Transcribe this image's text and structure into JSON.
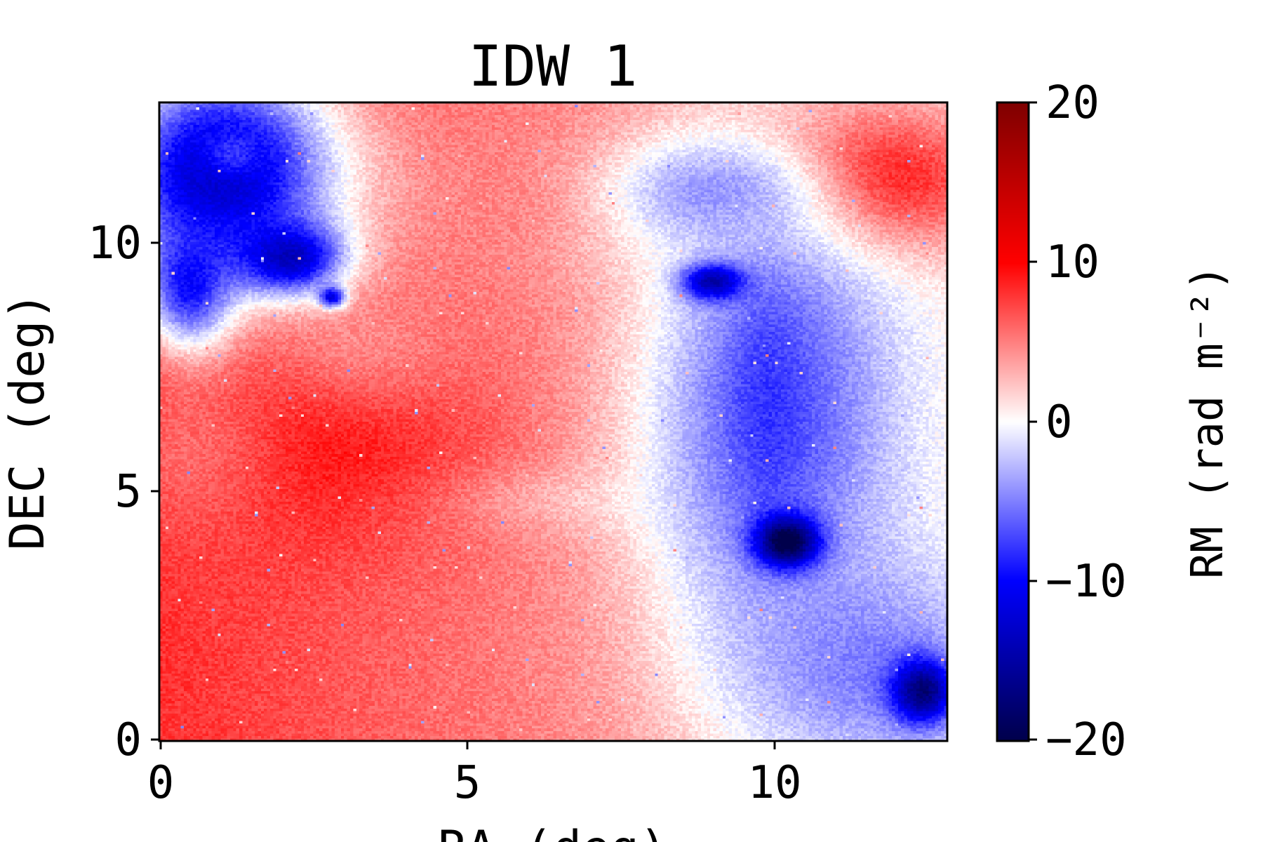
{
  "chart_data": {
    "type": "heatmap",
    "title": "IDW 1",
    "xlabel": "RA (deg)",
    "ylabel": "DEC (deg)",
    "xlim": [
      0,
      12.8
    ],
    "ylim": [
      0,
      12.8
    ],
    "x_ticks": [
      0,
      5,
      10
    ],
    "y_ticks": [
      0,
      5,
      10
    ],
    "grid": false,
    "colormap": "seismic",
    "colorbar": {
      "label": "RM (rad m⁻²)",
      "range": [
        -20,
        20
      ],
      "ticks": [
        -20,
        -10,
        0,
        10,
        20
      ],
      "tick_labels": [
        "−20",
        "−10",
        "0",
        "10",
        "20"
      ]
    },
    "background_rm": 5,
    "features": [
      {
        "ra": 2.3,
        "dec": 6.3,
        "sigma_ra": 1.9,
        "sigma_dec": 1.5,
        "rm": 10
      },
      {
        "ra": 0.5,
        "dec": 5.8,
        "sigma_ra": 1.1,
        "sigma_dec": 1.4,
        "rm": 6
      },
      {
        "ra": 3.5,
        "dec": 8.0,
        "sigma_ra": 1.3,
        "sigma_dec": 1.0,
        "rm": 5
      },
      {
        "ra": 5.0,
        "dec": 10.8,
        "sigma_ra": 2.0,
        "sigma_dec": 1.4,
        "rm": 5
      },
      {
        "ra": 7.5,
        "dec": 9.6,
        "sigma_ra": 1.0,
        "sigma_dec": 0.4,
        "rm": 4
      },
      {
        "ra": 7.2,
        "dec": 4.8,
        "sigma_ra": 1.5,
        "sigma_dec": 0.5,
        "rm": 3
      },
      {
        "ra": 11.3,
        "dec": 11.2,
        "sigma_ra": 1.4,
        "sigma_dec": 1.0,
        "rm": 13
      },
      {
        "ra": 10.0,
        "dec": 6.5,
        "sigma_ra": 1.5,
        "sigma_dec": 3.5,
        "rm": -7
      },
      {
        "ra": 11.5,
        "dec": 1.5,
        "sigma_ra": 1.5,
        "sigma_dec": 1.5,
        "rm": -5
      },
      {
        "ra": 9.0,
        "dec": 11.0,
        "sigma_ra": 1.2,
        "sigma_dec": 0.8,
        "rm": -4
      },
      {
        "ra": 1.0,
        "dec": 11.4,
        "sigma_ra": 1.3,
        "sigma_dec": 1.5,
        "rm": -14
      },
      {
        "ra": 0.5,
        "dec": 9.2,
        "sigma_ra": 0.5,
        "sigma_dec": 0.9,
        "rm": -10
      },
      {
        "ra": 2.1,
        "dec": 9.7,
        "sigma_ra": 0.6,
        "sigma_dec": 0.5,
        "rm": -14
      },
      {
        "ra": 1.2,
        "dec": 11.8,
        "sigma_ra": 0.4,
        "sigma_dec": 0.4,
        "rm": -8
      },
      {
        "ra": 2.8,
        "dec": 8.9,
        "sigma_ra": 0.15,
        "sigma_dec": 0.15,
        "rm": -12
      },
      {
        "ra": 9.0,
        "dec": 9.2,
        "sigma_ra": 0.35,
        "sigma_dec": 0.25,
        "rm": -15
      },
      {
        "ra": 9.9,
        "dec": 6.8,
        "sigma_ra": 0.35,
        "sigma_dec": 1.3,
        "rm": -8
      },
      {
        "ra": 10.2,
        "dec": 4.0,
        "sigma_ra": 0.35,
        "sigma_dec": 0.35,
        "rm": -22
      },
      {
        "ra": 12.4,
        "dec": 1.0,
        "sigma_ra": 0.35,
        "sigma_dec": 0.45,
        "rm": -18
      }
    ]
  },
  "colors": {
    "cmap_dark_blue": "#00004c",
    "cmap_blue": "#0000ff",
    "cmap_white": "#ffffff",
    "cmap_red": "#ff0000",
    "cmap_dark_red": "#800000",
    "axes_frame": "#000000"
  }
}
